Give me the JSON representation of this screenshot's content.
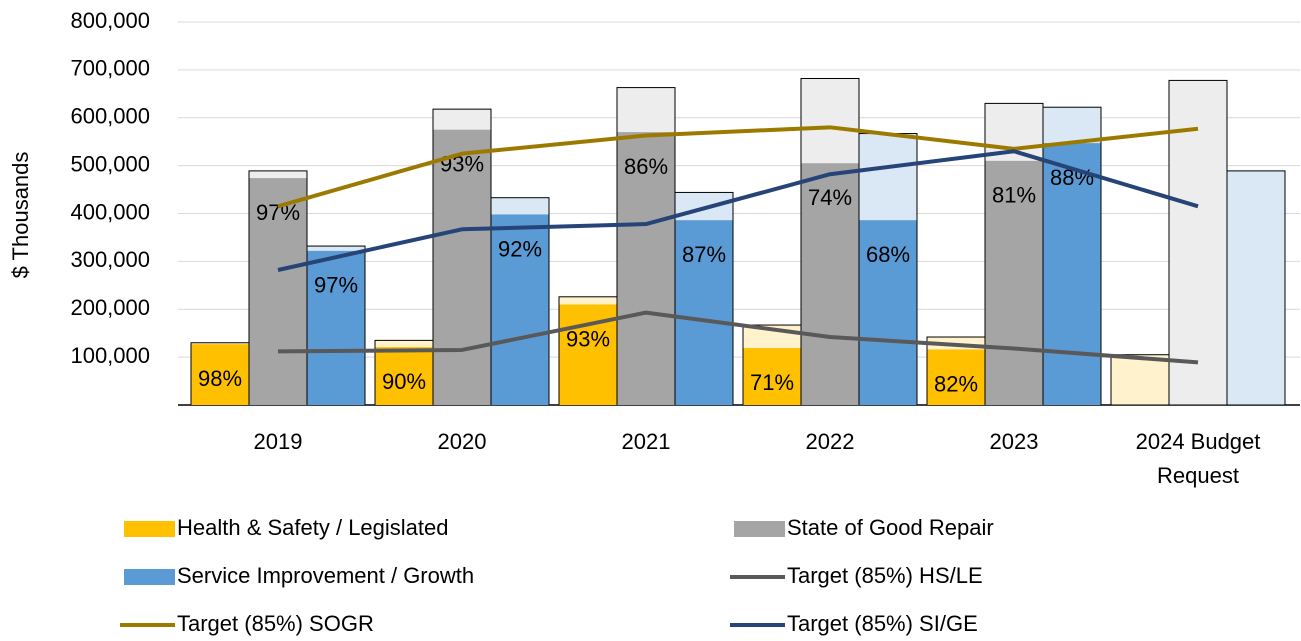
{
  "chart_data": {
    "type": "bar",
    "y_label": "$ Thousands",
    "categories": [
      "2019",
      "2020",
      "2021",
      "2022",
      "2023",
      "2024 Budget Request"
    ],
    "ylim": [
      0,
      800000
    ],
    "yticks": [
      {
        "value": 100000,
        "label": "100,000"
      },
      {
        "value": 200000,
        "label": "200,000"
      },
      {
        "value": 300000,
        "label": "300,000"
      },
      {
        "value": 400000,
        "label": "400,000"
      },
      {
        "value": 500000,
        "label": "500,000"
      },
      {
        "value": 600000,
        "label": "600,000"
      },
      {
        "value": 700000,
        "label": "700,000"
      },
      {
        "value": 800000,
        "label": "800,000"
      }
    ],
    "grid": true,
    "series": [
      {
        "name": "Health & Safety / Legislated",
        "type": "bar",
        "color": "#ffc000",
        "budget_color": "#fff2cc",
        "budget": [
          130000,
          135000,
          226000,
          167000,
          142000,
          105000
        ],
        "values": [
          127000,
          121000,
          210000,
          119000,
          116000,
          null
        ],
        "percent_labels": [
          "98%",
          "90%",
          "93%",
          "71%",
          "82%",
          null
        ]
      },
      {
        "name": "State of Good Repair",
        "type": "bar",
        "color": "#a5a5a5",
        "budget_color": "#ededed",
        "budget": [
          489000,
          618000,
          663000,
          682000,
          630000,
          678000
        ],
        "values": [
          474000,
          575000,
          570000,
          505000,
          510000,
          null
        ],
        "percent_labels": [
          "97%",
          "93%",
          "86%",
          "74%",
          "81%",
          null
        ]
      },
      {
        "name": "Service Improvement / Growth",
        "type": "bar",
        "color": "#5b9bd5",
        "budget_color": "#dae8f5",
        "budget": [
          332000,
          433000,
          444000,
          567000,
          622000,
          489000
        ],
        "values": [
          322000,
          398000,
          386000,
          386000,
          547000,
          null
        ],
        "percent_labels": [
          "97%",
          "92%",
          "87%",
          "68%",
          "88%",
          null
        ]
      },
      {
        "name": "Target (85%) HS/LE",
        "type": "line",
        "color": "#595959",
        "values": [
          112000,
          115000,
          193000,
          142000,
          118000,
          89000
        ]
      },
      {
        "name": "Target (85%) SOGR",
        "type": "line",
        "color": "#9c7a00",
        "values": [
          415000,
          525000,
          563000,
          580000,
          535000,
          577000
        ]
      },
      {
        "name": "Target (85%) SI/GE",
        "type": "line",
        "color": "#264478",
        "values": [
          282000,
          367000,
          378000,
          482000,
          530000,
          415000
        ]
      }
    ],
    "legend": "bottom"
  }
}
